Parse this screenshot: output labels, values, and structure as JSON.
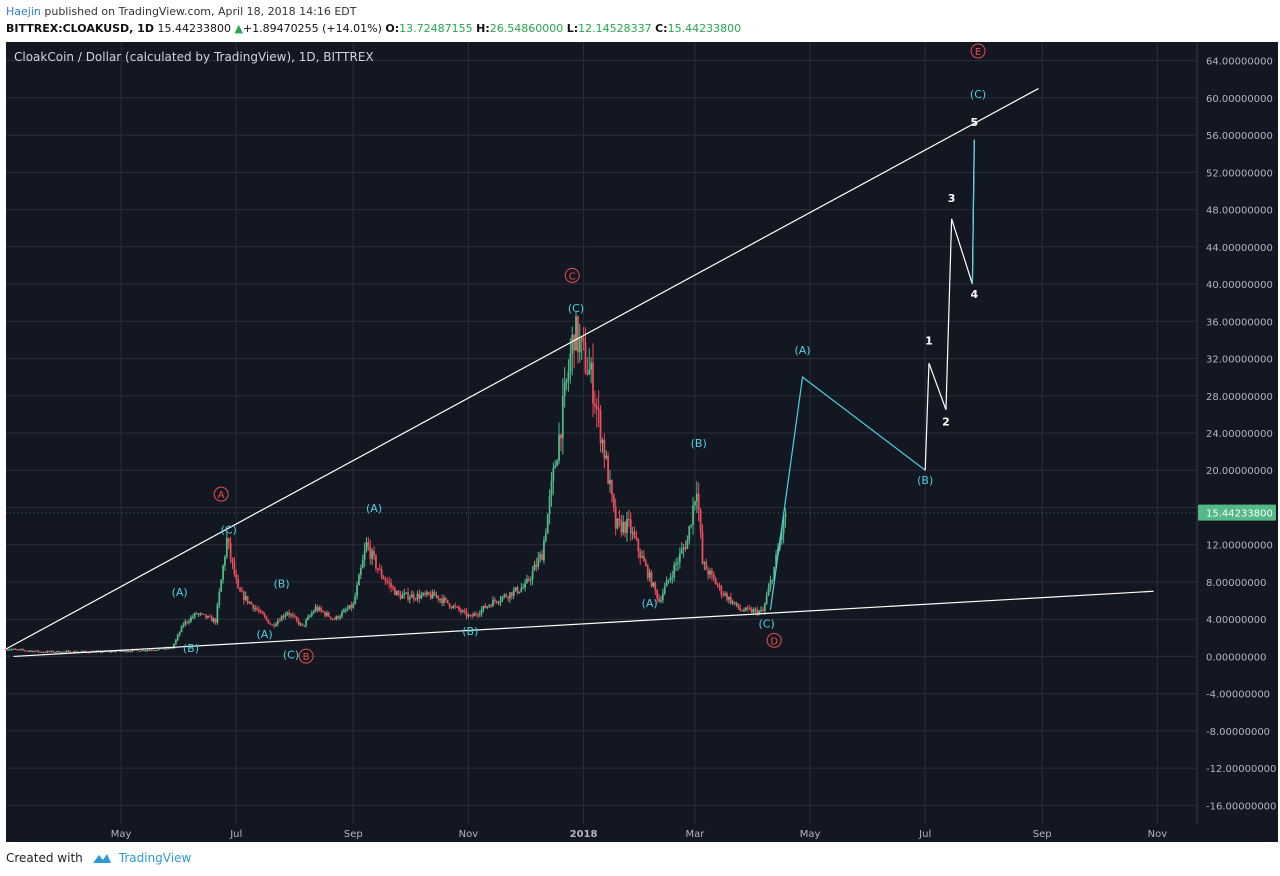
{
  "header": {
    "author": "Haejin",
    "published": "published on TradingView.com, April 18, 2018 14:16 EDT",
    "symbol": "BITTREX:CLOAKUSD, 1D",
    "price": "15.44233800",
    "change_arrow": "▲",
    "change": "+1.89470255 (+14.01%)",
    "o_label": "O:",
    "o_value": "13.72487155",
    "h_label": "H:",
    "h_value": "26.54860000",
    "l_label": "L:",
    "l_value": "12.14528337",
    "c_label": "C:",
    "c_value": "15.44233800"
  },
  "footer": {
    "created_with": "Created with",
    "brand": "TradingView"
  },
  "colors": {
    "background": "#131722",
    "grid": "#2a2e39",
    "up_candle": "#53b987",
    "down_candle": "#eb4d5c",
    "wave_line": "#4dd0e1",
    "projection": "#ffffff",
    "major_label": "#e84c4c",
    "last_price_tag": "#53b987"
  },
  "chart_data": {
    "type": "candlestick",
    "title": "CloakCoin / Dollar (calculated by TradingView), 1D, BITTREX",
    "xlabel": "",
    "ylabel": "",
    "ylim": [
      -18,
      66
    ],
    "y_ticks": [
      "64.00000000",
      "60.00000000",
      "56.00000000",
      "52.00000000",
      "48.00000000",
      "44.00000000",
      "40.00000000",
      "36.00000000",
      "32.00000000",
      "28.00000000",
      "24.00000000",
      "20.00000000",
      "16.00000000",
      "12.00000000",
      "8.00000000",
      "4.00000000",
      "0.00000000",
      "-4.00000000",
      "-8.00000000",
      "-12.00000000",
      "-16.00000000"
    ],
    "y_tick_values": [
      64,
      60,
      56,
      52,
      48,
      44,
      40,
      36,
      32,
      28,
      24,
      20,
      16,
      12,
      8,
      4,
      0,
      -4,
      -8,
      -12,
      -16
    ],
    "x_ticks": [
      {
        "label": "May",
        "date": "2017-05-01"
      },
      {
        "label": "Jul",
        "date": "2017-07-01"
      },
      {
        "label": "Sep",
        "date": "2017-09-01"
      },
      {
        "label": "Nov",
        "date": "2017-11-01"
      },
      {
        "label": "2018",
        "date": "2018-01-01"
      },
      {
        "label": "Mar",
        "date": "2018-03-01"
      },
      {
        "label": "May",
        "date": "2018-05-01"
      },
      {
        "label": "Jul",
        "date": "2018-07-01"
      },
      {
        "label": "Sep",
        "date": "2018-09-01"
      },
      {
        "label": "Nov",
        "date": "2018-11-01"
      }
    ],
    "x_range": [
      "2017-03-01",
      "2018-11-22"
    ],
    "last_price": 15.442338,
    "last_price_label": "15.44233800",
    "price_anchors": [
      [
        "2017-03-01",
        0.8
      ],
      [
        "2017-03-20",
        0.5
      ],
      [
        "2017-04-20",
        0.5
      ],
      [
        "2017-05-15",
        0.7
      ],
      [
        "2017-05-28",
        0.9
      ],
      [
        "2017-06-03",
        3.5
      ],
      [
        "2017-06-10",
        4.6
      ],
      [
        "2017-06-20",
        3.8
      ],
      [
        "2017-06-26",
        12.5
      ],
      [
        "2017-07-02",
        7.0
      ],
      [
        "2017-07-12",
        5.0
      ],
      [
        "2017-07-20",
        3.3
      ],
      [
        "2017-07-28",
        4.8
      ],
      [
        "2017-08-05",
        3.2
      ],
      [
        "2017-08-12",
        5.2
      ],
      [
        "2017-08-22",
        4.0
      ],
      [
        "2017-09-01",
        5.5
      ],
      [
        "2017-09-08",
        12.0
      ],
      [
        "2017-09-15",
        9.0
      ],
      [
        "2017-09-25",
        6.5
      ],
      [
        "2017-10-15",
        6.5
      ],
      [
        "2017-11-02",
        4.2
      ],
      [
        "2017-11-15",
        6.0
      ],
      [
        "2017-12-01",
        7.5
      ],
      [
        "2017-12-10",
        11.0
      ],
      [
        "2017-12-20",
        25.0
      ],
      [
        "2017-12-27",
        35.0
      ],
      [
        "2018-01-05",
        30.0
      ],
      [
        "2018-01-12",
        22.0
      ],
      [
        "2018-01-18",
        14.0
      ],
      [
        "2018-01-25",
        14.0
      ],
      [
        "2018-02-05",
        8.5
      ],
      [
        "2018-02-10",
        6.0
      ],
      [
        "2018-02-18",
        9.5
      ],
      [
        "2018-02-25",
        12.5
      ],
      [
        "2018-03-02",
        18.5
      ],
      [
        "2018-03-05",
        10.0
      ],
      [
        "2018-03-15",
        7.0
      ],
      [
        "2018-03-25",
        5.0
      ],
      [
        "2018-04-06",
        4.8
      ],
      [
        "2018-04-12",
        9.5
      ],
      [
        "2018-04-18",
        15.4
      ]
    ],
    "upper_trendline": {
      "from": [
        "2017-03-01",
        0.8
      ],
      "to": [
        "2018-08-30",
        61.0
      ]
    },
    "lower_trendline": {
      "from": [
        "2017-03-05",
        0.0
      ],
      "to": [
        "2018-10-30",
        7.0
      ]
    },
    "wave_path": [
      [
        "2018-04-10",
        5.0
      ],
      [
        "2018-04-27",
        30.0
      ],
      [
        "2018-07-01",
        20.0
      ]
    ],
    "projection_path": [
      [
        "2018-07-01",
        20.0
      ],
      [
        "2018-07-03",
        31.5
      ],
      [
        "2018-07-12",
        26.5
      ],
      [
        "2018-07-15",
        47.0
      ],
      [
        "2018-07-26",
        40.0
      ],
      [
        "2018-07-27",
        55.5
      ]
    ],
    "last_segment": [
      [
        "2018-07-26",
        40.0
      ],
      [
        "2018-07-27",
        55.5
      ]
    ],
    "annotations": [
      {
        "text": "(A)",
        "style": "wave",
        "at": [
          "2017-06-01",
          6.5
        ]
      },
      {
        "text": "(B)",
        "style": "wave",
        "at": [
          "2017-06-07",
          0.5
        ]
      },
      {
        "text": "(C)",
        "style": "wave",
        "at": [
          "2017-06-27",
          13.2
        ]
      },
      {
        "text": "A",
        "style": "major",
        "at": [
          "2017-06-23",
          17.0
        ]
      },
      {
        "text": "(B)",
        "style": "wave",
        "at": [
          "2017-07-25",
          7.4
        ]
      },
      {
        "text": "(A)",
        "style": "wave",
        "at": [
          "2017-07-16",
          2.0
        ]
      },
      {
        "text": "(C)",
        "style": "wave",
        "at": [
          "2017-07-30",
          -0.2
        ]
      },
      {
        "text": "B",
        "style": "major",
        "at": [
          "2017-08-07",
          -0.4
        ]
      },
      {
        "text": "(A)",
        "style": "wave",
        "at": [
          "2017-09-12",
          15.5
        ]
      },
      {
        "text": "(B)",
        "style": "wave",
        "at": [
          "2017-11-02",
          2.3
        ]
      },
      {
        "text": "C",
        "style": "major",
        "at": [
          "2017-12-26",
          40.5
        ]
      },
      {
        "text": "(C)",
        "style": "wave",
        "at": [
          "2017-12-28",
          37.0
        ]
      },
      {
        "text": "(A)",
        "style": "wave",
        "at": [
          "2018-02-05",
          5.3
        ]
      },
      {
        "text": "(B)",
        "style": "wave",
        "at": [
          "2018-03-03",
          22.5
        ]
      },
      {
        "text": "(C)",
        "style": "wave",
        "at": [
          "2018-04-08",
          3.1
        ]
      },
      {
        "text": "D",
        "style": "major",
        "at": [
          "2018-04-12",
          1.3
        ]
      },
      {
        "text": "(A)",
        "style": "wave",
        "at": [
          "2018-04-27",
          32.5
        ]
      },
      {
        "text": "(B)",
        "style": "wave",
        "at": [
          "2018-07-01",
          18.5
        ]
      },
      {
        "text": "1",
        "style": "projection",
        "at": [
          "2018-07-03",
          33.5
        ]
      },
      {
        "text": "2",
        "style": "projection",
        "at": [
          "2018-07-12",
          24.8
        ]
      },
      {
        "text": "3",
        "style": "projection",
        "at": [
          "2018-07-15",
          48.8
        ]
      },
      {
        "text": "4",
        "style": "projection",
        "at": [
          "2018-07-27",
          38.5
        ]
      },
      {
        "text": "5",
        "style": "projection",
        "at": [
          "2018-07-27",
          57.0
        ]
      },
      {
        "text": "(C)",
        "style": "wave",
        "at": [
          "2018-07-29",
          60.0
        ]
      },
      {
        "text": "E",
        "style": "major",
        "at": [
          "2018-07-29",
          64.6
        ]
      }
    ]
  }
}
